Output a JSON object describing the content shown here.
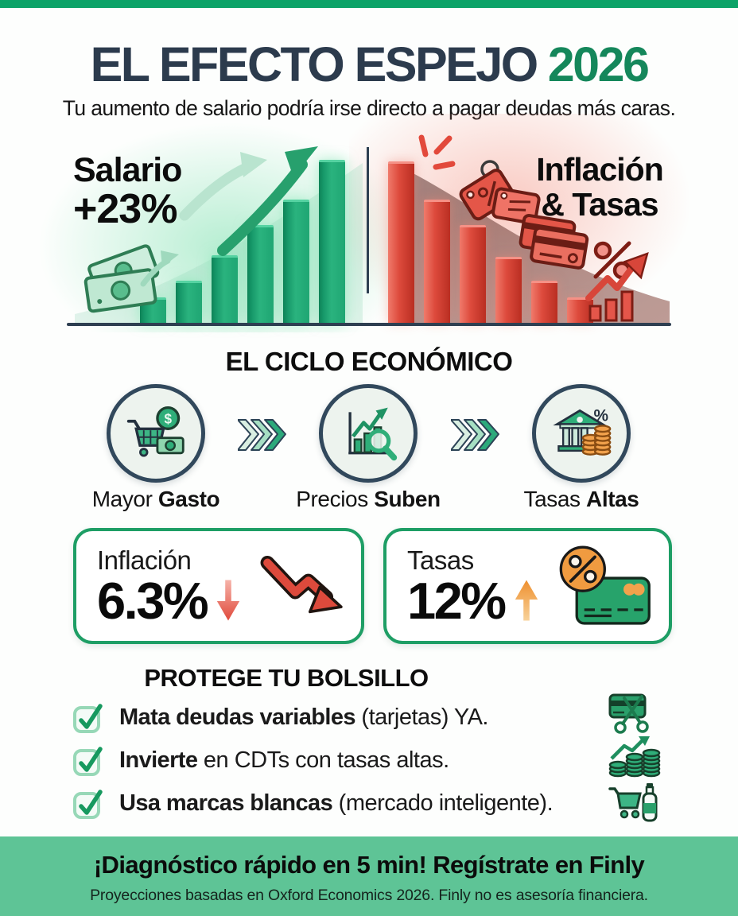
{
  "colors": {
    "top_bar": "#0ca368",
    "title_navy": "#2c3b4d",
    "accent_green": "#15875b",
    "stat_border_green": "#1e9e65",
    "bar_green": "#1fa673",
    "bar_red": "#d8463a",
    "footer_green": "#5ec496",
    "orange": "#f09b40"
  },
  "header": {
    "title_main": "EL EFECTO ESPEJO",
    "title_year": "2026",
    "subtitle": "Tu aumento de salario podría irse directo a pagar deudas más caras."
  },
  "mirror_chart": {
    "left_label_line1": "Salario",
    "left_label_line2": "+23%",
    "right_label_line1": "Inflación",
    "right_label_line2": "& Tasas"
  },
  "chart_data": [
    {
      "type": "bar",
      "title": "Salario +23%",
      "values": [
        29,
        50,
        82,
        120,
        152,
        202
      ],
      "trend": "ascending",
      "color": "#1fa673",
      "axes_labeled": false
    },
    {
      "type": "bar",
      "title": "Inflación & Tasas",
      "values": [
        200,
        152,
        120,
        80,
        50,
        29
      ],
      "trend": "descending",
      "color": "#d8463a",
      "axes_labeled": false
    }
  ],
  "cycle": {
    "title": "EL CICLO ECONÓMICO",
    "steps": [
      {
        "label_prefix": "Mayor ",
        "label_bold": "Gasto",
        "icon": "shopping-cart-money-icon"
      },
      {
        "label_prefix": "Precios ",
        "label_bold": "Suben",
        "icon": "price-chart-magnifier-icon"
      },
      {
        "label_prefix": "Tasas ",
        "label_bold": "Altas",
        "icon": "bank-coins-percent-icon"
      }
    ]
  },
  "stats": [
    {
      "label": "Inflación",
      "value": "6.3%",
      "trend": "down",
      "icon": "red-zigzag-down-arrow-icon"
    },
    {
      "label": "Tasas",
      "value": "12%",
      "trend": "up",
      "icon": "percent-credit-card-icon"
    }
  ],
  "protect": {
    "title": "PROTEGE TU BOLSILLO",
    "items": [
      {
        "bold": "Mata deudas variables",
        "rest": " (tarjetas) YA.",
        "icon": "scissors-credit-card-icon"
      },
      {
        "bold": "Invierte",
        "rest": " en CDTs con tasas altas.",
        "icon": "growth-coins-icon"
      },
      {
        "bold": "Usa marcas blancas",
        "rest": " (mercado inteligente).",
        "icon": "cart-bottle-icon"
      }
    ]
  },
  "footer": {
    "headline": "¡Diagnóstico rápido en 5 min! Regístrate en Finly",
    "disclaimer": "Proyecciones basadas en Oxford Economics 2026. Finly no es asesoría financiera."
  }
}
